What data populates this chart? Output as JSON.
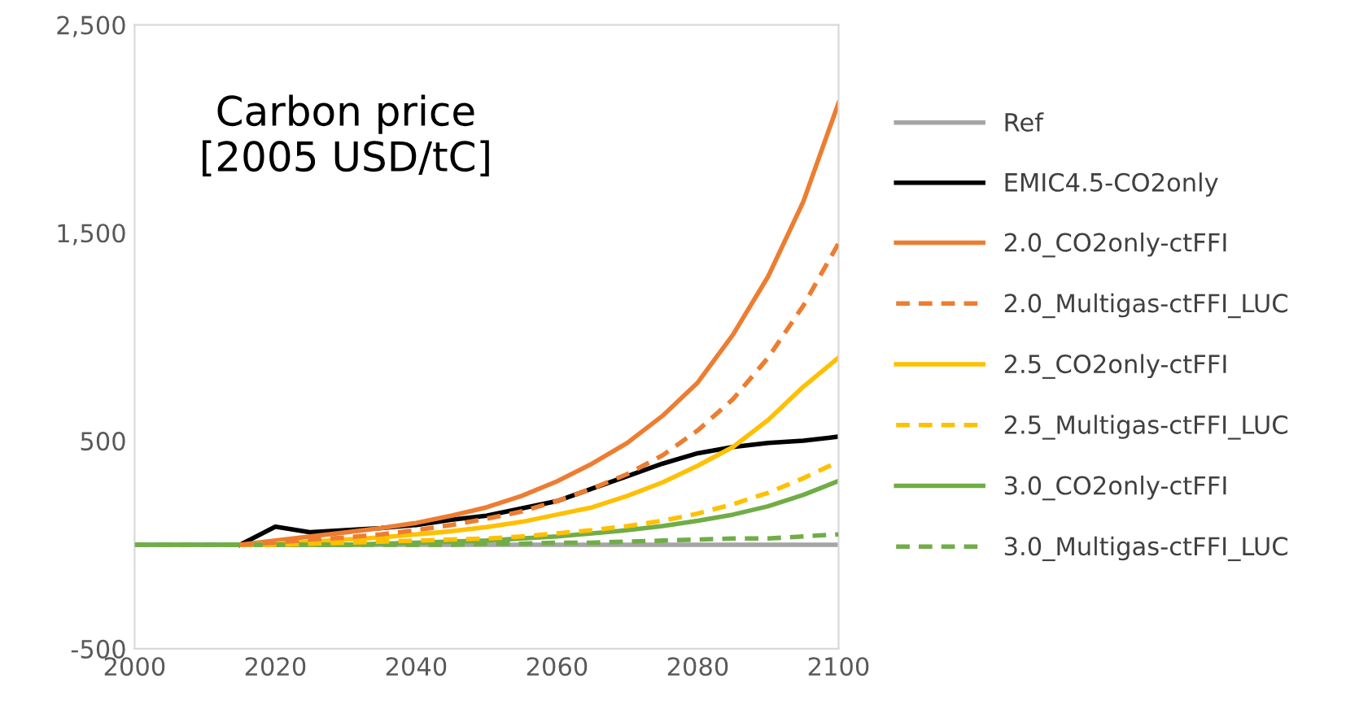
{
  "chart_data": {
    "type": "line",
    "title": "Carbon price\n[2005 USD/tC]",
    "x": [
      2000,
      2005,
      2010,
      2015,
      2020,
      2025,
      2030,
      2035,
      2040,
      2045,
      2050,
      2055,
      2060,
      2065,
      2070,
      2075,
      2080,
      2085,
      2090,
      2095,
      2100
    ],
    "xlim": [
      2000,
      2100
    ],
    "xticks": [
      2000,
      2020,
      2040,
      2060,
      2080,
      2100
    ],
    "ylim": [
      -500,
      2500
    ],
    "yticks": [
      {
        "value": -500,
        "label": "-500"
      },
      {
        "value": 500,
        "label": "500"
      },
      {
        "value": 1500,
        "label": "1,500"
      },
      {
        "value": 2500,
        "label": "2,500"
      }
    ],
    "grid": false,
    "legend": "right",
    "marker": "none",
    "series": [
      {
        "name": "Ref",
        "color": "#a5a5a5",
        "line_style": "solid",
        "values": [
          0,
          0,
          0,
          0,
          0,
          0,
          0,
          0,
          0,
          0,
          0,
          0,
          0,
          0,
          0,
          0,
          0,
          0,
          0,
          0,
          0
        ]
      },
      {
        "name": "EMIC4.5-CO2only",
        "color": "#000000",
        "line_style": "solid",
        "values": [
          null,
          null,
          null,
          0,
          87,
          60,
          70,
          80,
          95,
          120,
          140,
          175,
          210,
          270,
          330,
          390,
          440,
          470,
          490,
          500,
          520
        ]
      },
      {
        "name": "2.0_CO2only-ctFFI",
        "color": "#ed7d31",
        "line_style": "solid",
        "values": [
          null,
          null,
          null,
          0,
          20,
          40,
          60,
          80,
          105,
          140,
          180,
          235,
          305,
          390,
          490,
          620,
          780,
          1010,
          1290,
          1650,
          2125
        ]
      },
      {
        "name": "2.0_Multigas-ctFFI_LUC",
        "color": "#ed7d31",
        "line_style": "dashed",
        "values": [
          null,
          null,
          null,
          0,
          10,
          25,
          35,
          50,
          70,
          95,
          125,
          160,
          210,
          270,
          340,
          430,
          550,
          700,
          900,
          1150,
          1450
        ]
      },
      {
        "name": "2.5_CO2only-ctFFI",
        "color": "#ffc000",
        "line_style": "solid",
        "values": [
          null,
          null,
          null,
          0,
          5,
          15,
          25,
          35,
          50,
          65,
          85,
          110,
          145,
          180,
          235,
          300,
          380,
          470,
          600,
          760,
          900
        ]
      },
      {
        "name": "2.5_Multigas-ctFFI_LUC",
        "color": "#ffc000",
        "line_style": "dashed",
        "values": [
          null,
          null,
          null,
          0,
          0,
          5,
          10,
          15,
          20,
          25,
          30,
          40,
          55,
          70,
          90,
          115,
          150,
          195,
          250,
          320,
          400
        ]
      },
      {
        "name": "3.0_CO2only-ctFFI",
        "color": "#70ad47",
        "line_style": "solid",
        "values": [
          0,
          0,
          0,
          0,
          0,
          0,
          0,
          5,
          10,
          15,
          20,
          30,
          40,
          55,
          70,
          90,
          115,
          145,
          185,
          240,
          307
        ]
      },
      {
        "name": "3.0_Multigas-ctFFI_LUC",
        "color": "#70ad47",
        "line_style": "dashed",
        "values": [
          0,
          0,
          0,
          0,
          0,
          0,
          0,
          0,
          0,
          0,
          5,
          5,
          10,
          10,
          15,
          20,
          25,
          30,
          30,
          40,
          50
        ]
      }
    ]
  }
}
